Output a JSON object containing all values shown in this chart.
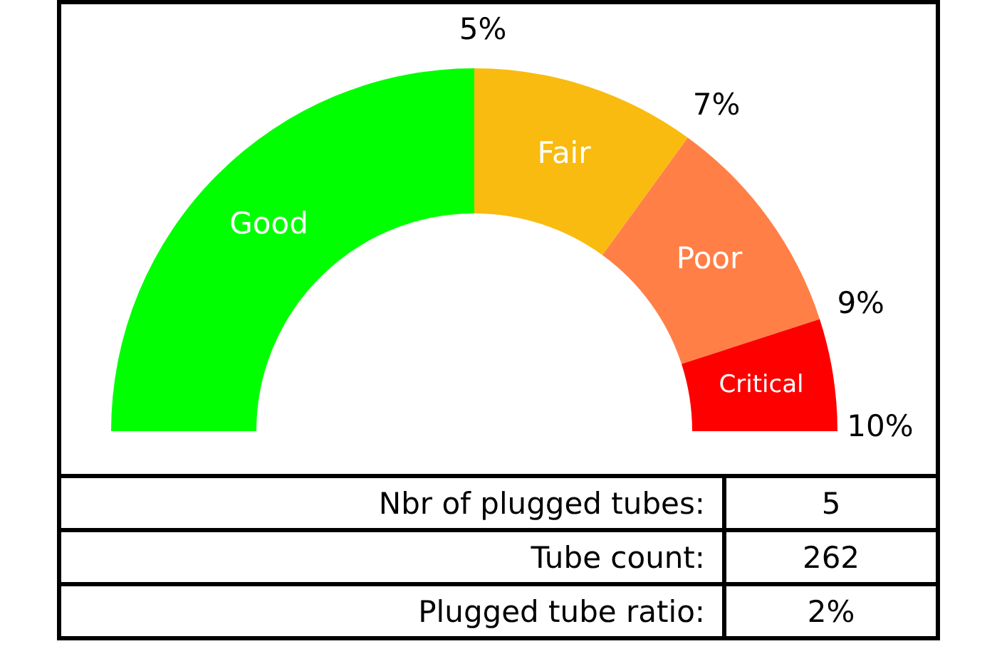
{
  "chart_data": {
    "type": "donut",
    "categories": [
      "Good",
      "Fair",
      "Poor",
      "Critical"
    ],
    "values": [
      50,
      20,
      20,
      10
    ],
    "colors": [
      "#00ff00",
      "#f9bb10",
      "#ff7f47",
      "#ff0000"
    ],
    "legend": false,
    "annotations": [
      "5%",
      "7%",
      "9%",
      "10%",
      "Nbr of plugged tubes:",
      "5",
      "Tube count:",
      "262",
      "Plugged tube ratio:",
      "2%"
    ]
  }
}
